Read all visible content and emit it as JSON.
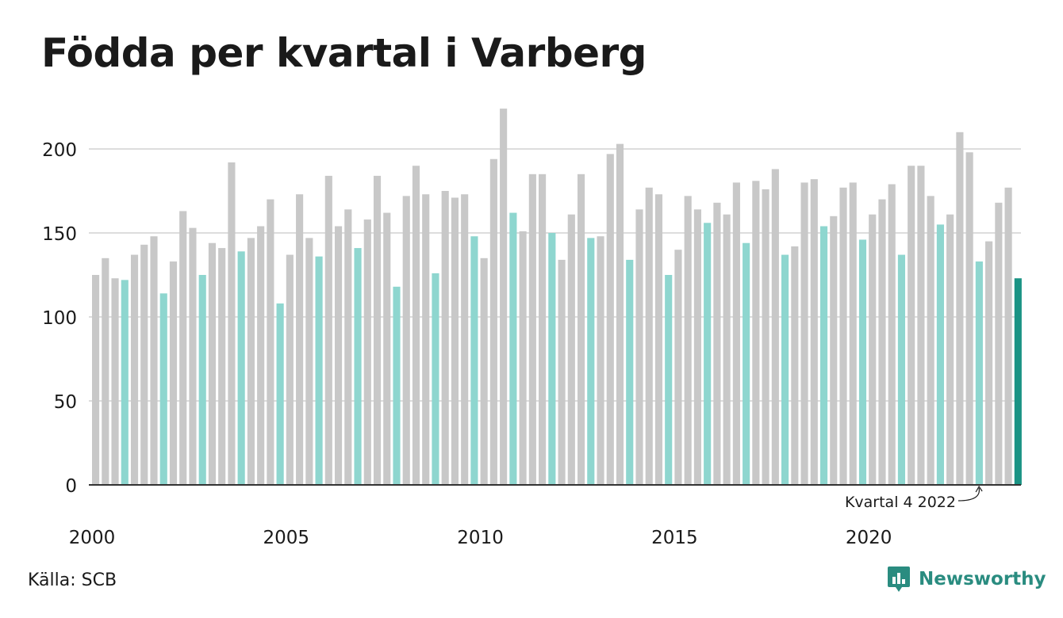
{
  "title": "Födda per kvartal i Varberg",
  "source": "Källa: SCB",
  "brand": "Newsworthy",
  "colors": {
    "bar_default": "#c8c8c8",
    "bar_quarter4": "#8ed6cf",
    "bar_latest": "#1a9384",
    "grid": "#dddddd",
    "axis": "#333333",
    "brand": "#2a8c80"
  },
  "chart_data": {
    "type": "bar",
    "title": "Födda per kvartal i Varberg",
    "xlabel": "",
    "ylabel": "",
    "ylim": [
      0,
      225
    ],
    "yticks": [
      0,
      50,
      100,
      150,
      200
    ],
    "xticks": [
      "2000",
      "2005",
      "2010",
      "2015",
      "2020"
    ],
    "grid": true,
    "annotation": {
      "text": "Kvartal 4 2022",
      "target_index": 91
    },
    "highlight_rule": "quarter 4 bars light teal, latest quarter dark teal",
    "values": [
      125,
      135,
      123,
      122,
      137,
      143,
      148,
      114,
      133,
      163,
      153,
      125,
      144,
      141,
      192,
      139,
      147,
      154,
      170,
      108,
      137,
      173,
      147,
      136,
      184,
      154,
      164,
      141,
      158,
      184,
      162,
      118,
      172,
      190,
      173,
      126,
      175,
      171,
      173,
      148,
      135,
      194,
      224,
      162,
      151,
      185,
      185,
      150,
      134,
      161,
      185,
      147,
      148,
      197,
      203,
      134,
      164,
      177,
      173,
      125,
      140,
      172,
      164,
      156,
      168,
      161,
      180,
      144,
      181,
      176,
      188,
      137,
      142,
      180,
      182,
      154,
      160,
      177,
      180,
      146,
      161,
      170,
      179,
      137,
      190,
      190,
      172,
      155,
      161,
      210,
      198,
      133,
      145,
      168,
      177,
      123
    ]
  }
}
